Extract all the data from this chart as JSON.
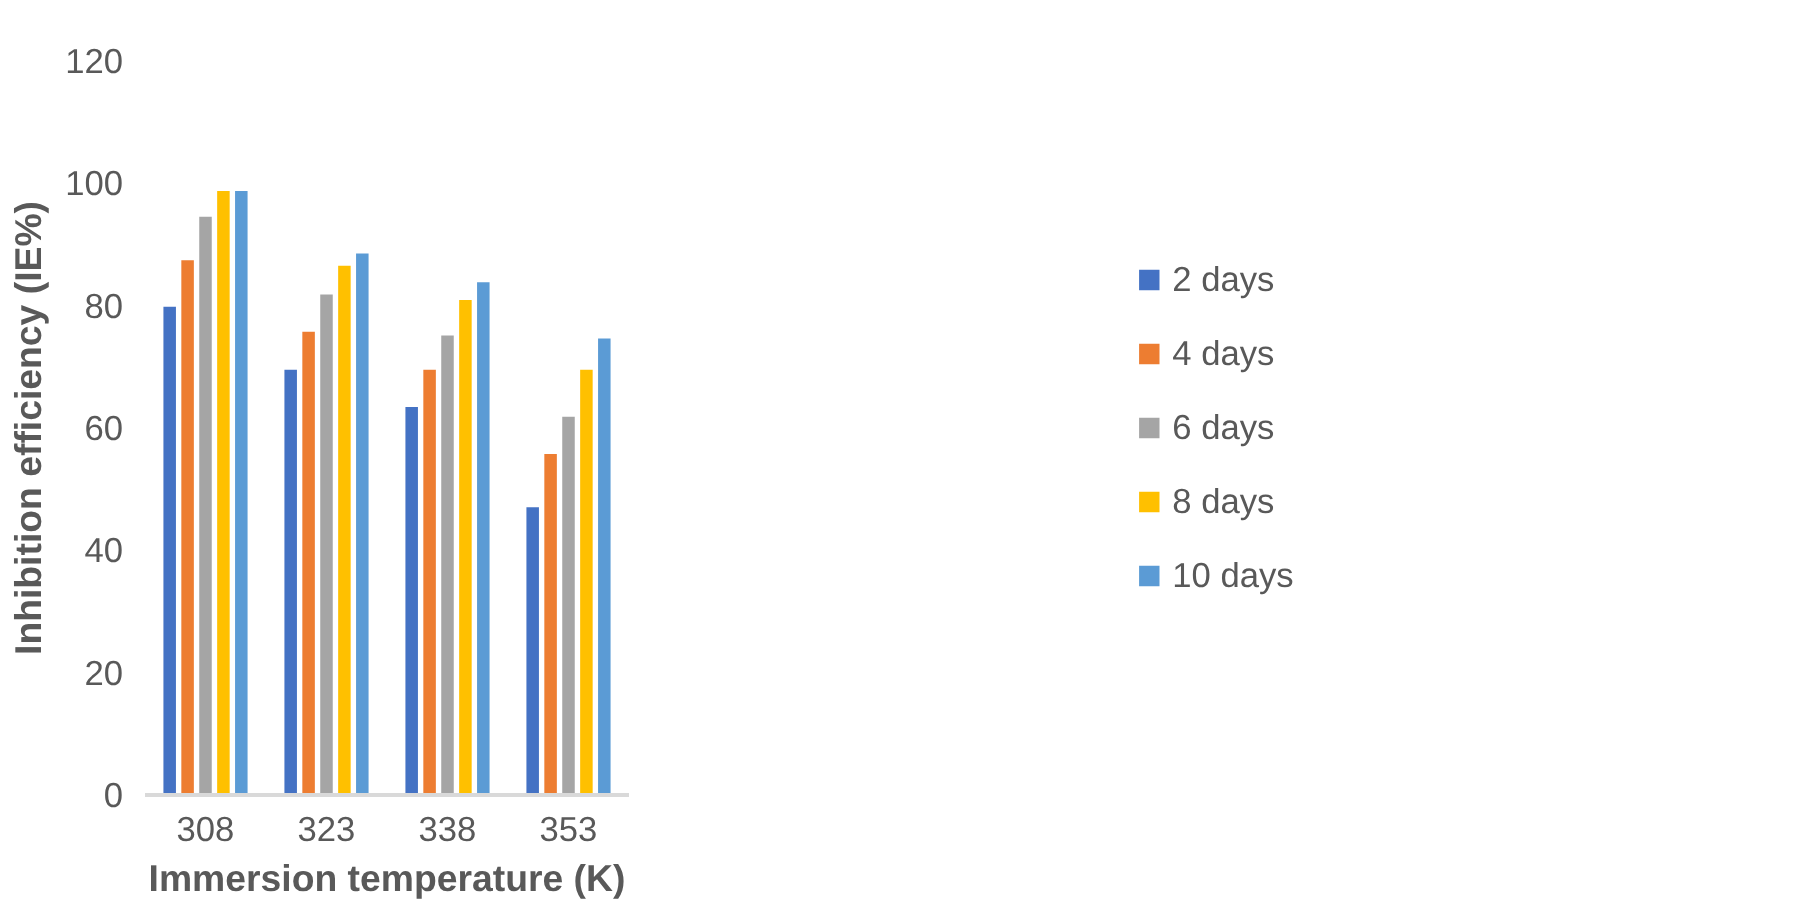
{
  "chart_data": {
    "type": "bar",
    "xlabel": "Immersion temperature (K)",
    "ylabel": "Inhibition efficiency (IE%)",
    "categories": [
      "308",
      "323",
      "338",
      "353"
    ],
    "series": [
      {
        "name": "2 days",
        "color": "#4472c4",
        "values": [
          80,
          69.7,
          63.6,
          47.2
        ]
      },
      {
        "name": "4 days",
        "color": "#ed7d31",
        "values": [
          87.6,
          75.9,
          69.7,
          55.9
        ]
      },
      {
        "name": "6 days",
        "color": "#a5a5a5",
        "values": [
          94.7,
          82,
          75.3,
          62
        ]
      },
      {
        "name": "8 days",
        "color": "#ffc000",
        "values": [
          98.9,
          86.7,
          81.1,
          69.7
        ]
      },
      {
        "name": "10 days",
        "color": "#5b9bd5",
        "values": [
          98.9,
          88.7,
          84,
          74.8
        ]
      }
    ],
    "ylim": [
      0,
      120
    ],
    "yticks": [
      0,
      20,
      40,
      60,
      80,
      100,
      120
    ],
    "grid": false,
    "legend": "right"
  }
}
